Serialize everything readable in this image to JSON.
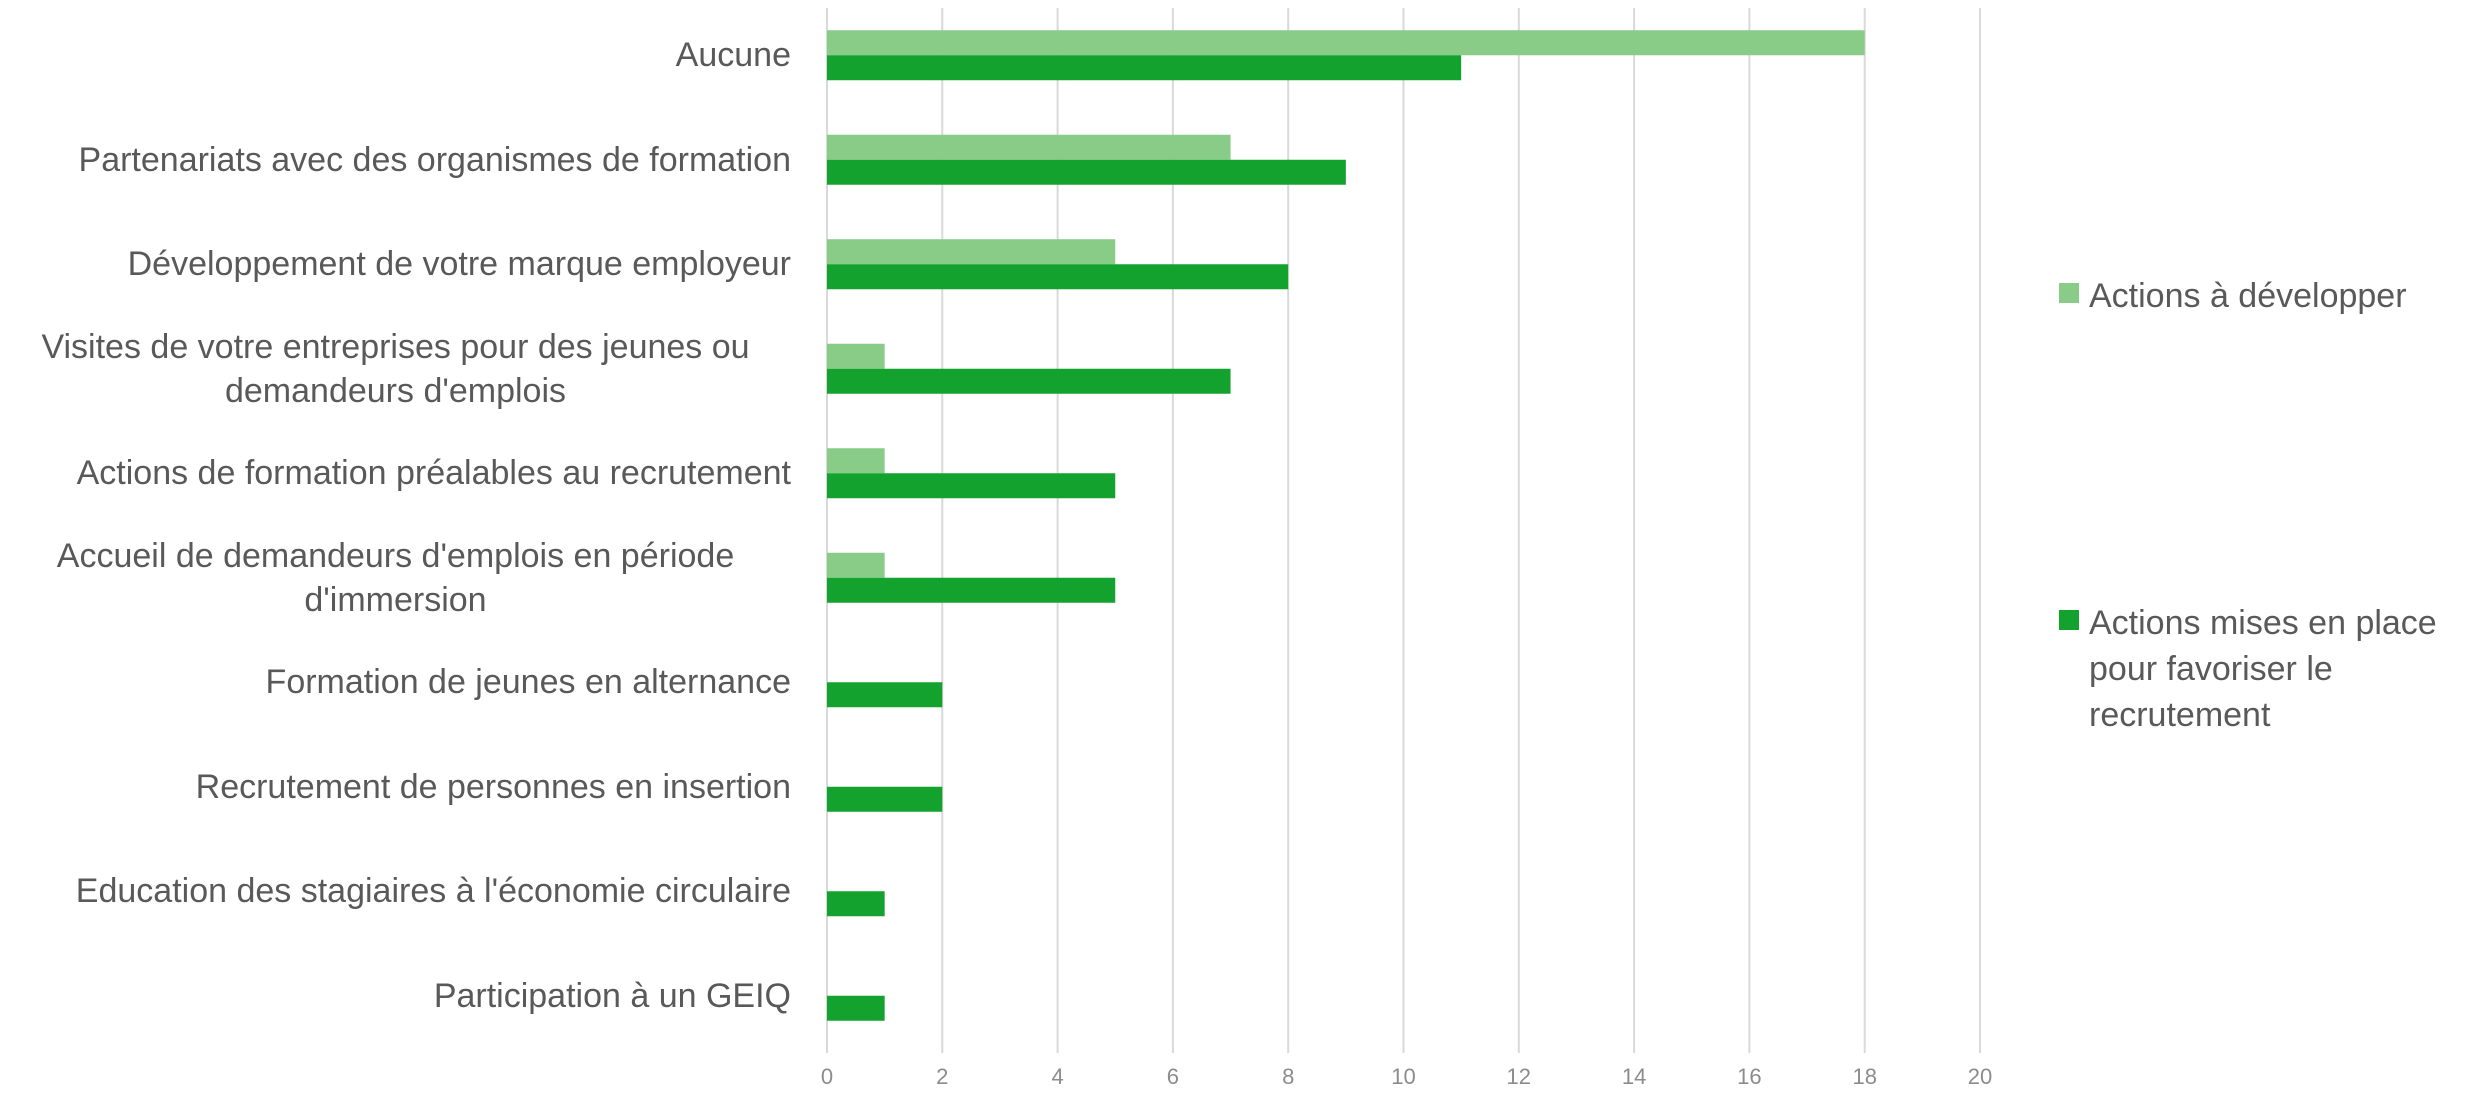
{
  "chart_data": {
    "type": "bar",
    "orientation": "horizontal",
    "categories": [
      "Aucune",
      "Partenariats avec des organismes de formation",
      "Développement de votre marque employeur",
      "Visites de votre entreprises pour des jeunes ou demandeurs d'emplois",
      "Actions de formation préalables au recrutement",
      "Accueil de demandeurs d'emplois en période d'immersion",
      "Formation de jeunes en alternance",
      "Recrutement de personnes en insertion",
      "Education des stagiaires à l'économie circulaire",
      "Participation à un GEIQ"
    ],
    "series": [
      {
        "name": "Actions à développer",
        "color": "#88cc88",
        "values": [
          18,
          7,
          5,
          1,
          1,
          1,
          0,
          0,
          0,
          0
        ]
      },
      {
        "name": "Actions mises en place pour favoriser le recrutement",
        "color": "#13a22e",
        "values": [
          11,
          9,
          8,
          7,
          5,
          5,
          2,
          2,
          1,
          1
        ]
      }
    ],
    "xlim": [
      0,
      20
    ],
    "xticks": [
      0,
      2,
      4,
      6,
      8,
      10,
      12,
      14,
      16,
      18,
      20
    ],
    "grid": true,
    "legend": "right"
  }
}
